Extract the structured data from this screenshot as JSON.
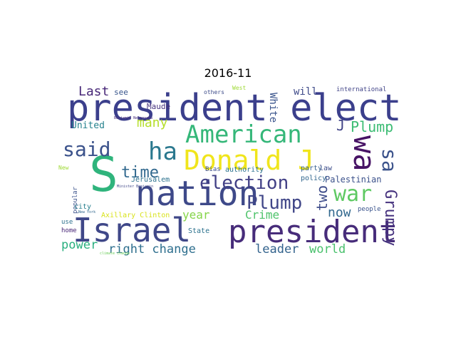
{
  "figure": {
    "title": "2016-11"
  },
  "words": [
    {
      "text": "president elect",
      "color": "#3b3f8c"
    },
    {
      "text": "Israel",
      "color": "#3f4788"
    },
    {
      "text": "president",
      "color": "#472c7a"
    },
    {
      "text": "nation",
      "color": "#3e4989"
    },
    {
      "text": "Donald J",
      "color": "#f0e51c"
    },
    {
      "text": "American",
      "color": "#35b779"
    },
    {
      "text": "S",
      "color": "#2fb47c"
    },
    {
      "text": "ha",
      "color": "#2a788e"
    },
    {
      "text": "said",
      "color": "#3b528b"
    },
    {
      "text": "wa",
      "color": "#471365"
    },
    {
      "text": "war",
      "color": "#5ec962"
    },
    {
      "text": "election",
      "color": "#424086"
    },
    {
      "text": "Plump",
      "color": "#404688"
    },
    {
      "text": "Plump",
      "color": "#3dbc74"
    },
    {
      "text": "time",
      "color": "#31688e"
    },
    {
      "text": "sa",
      "color": "#3b528b"
    },
    {
      "text": "J",
      "color": "#414487"
    },
    {
      "text": "Grumpy",
      "color": "#46327e"
    },
    {
      "text": "two",
      "color": "#3e4c8a"
    },
    {
      "text": "now",
      "color": "#31688e"
    },
    {
      "text": "Last",
      "color": "#482878"
    },
    {
      "text": "many",
      "color": "#b5de2b"
    },
    {
      "text": "United",
      "color": "#26828e"
    },
    {
      "text": "right change",
      "color": "#2e6f8e"
    },
    {
      "text": "power",
      "color": "#29af7f"
    },
    {
      "text": "year",
      "color": "#86d549"
    },
    {
      "text": "Crime",
      "color": "#4ec36b"
    },
    {
      "text": "leader",
      "color": "#33638d"
    },
    {
      "text": "world",
      "color": "#4ac16d"
    },
    {
      "text": "White",
      "color": "#3a548c"
    },
    {
      "text": "will",
      "color": "#3e4a89"
    },
    {
      "text": "Palestinian",
      "color": "#3b518b"
    },
    {
      "text": "Maude",
      "color": "#46327e"
    },
    {
      "text": "see",
      "color": "#39568c"
    },
    {
      "text": "Axillary Clinton",
      "color": "#d8e219"
    },
    {
      "text": "Jerusalem",
      "color": "#2c728e"
    },
    {
      "text": "popular",
      "color": "#3b528b"
    },
    {
      "text": "city",
      "color": "#277f8e"
    },
    {
      "text": "use",
      "color": "#2d708e"
    },
    {
      "text": "home",
      "color": "#482576"
    },
    {
      "text": "State",
      "color": "#2c728e"
    },
    {
      "text": "law",
      "color": "#3d4d8a"
    },
    {
      "text": "party",
      "color": "#355f8d"
    },
    {
      "text": "policy",
      "color": "#31668e"
    },
    {
      "text": "authority",
      "color": "#2c728e"
    },
    {
      "text": "Bias",
      "color": "#3d4e8a"
    },
    {
      "text": "international",
      "color": "#404387"
    },
    {
      "text": "people",
      "color": "#3a548c"
    },
    {
      "text": "others",
      "color": "#3e4c8a"
    },
    {
      "text": "West",
      "color": "#a0da39"
    },
    {
      "text": "New",
      "color": "#a0da39"
    },
    {
      "text": "Benjamin Netanyahu",
      "color": "#472d7b"
    },
    {
      "text": "Minister Benjamin",
      "color": "#3f4788"
    },
    {
      "text": "New York",
      "color": "#31688e"
    },
    {
      "text": "climate change",
      "color": "#6ccd5a"
    }
  ]
}
